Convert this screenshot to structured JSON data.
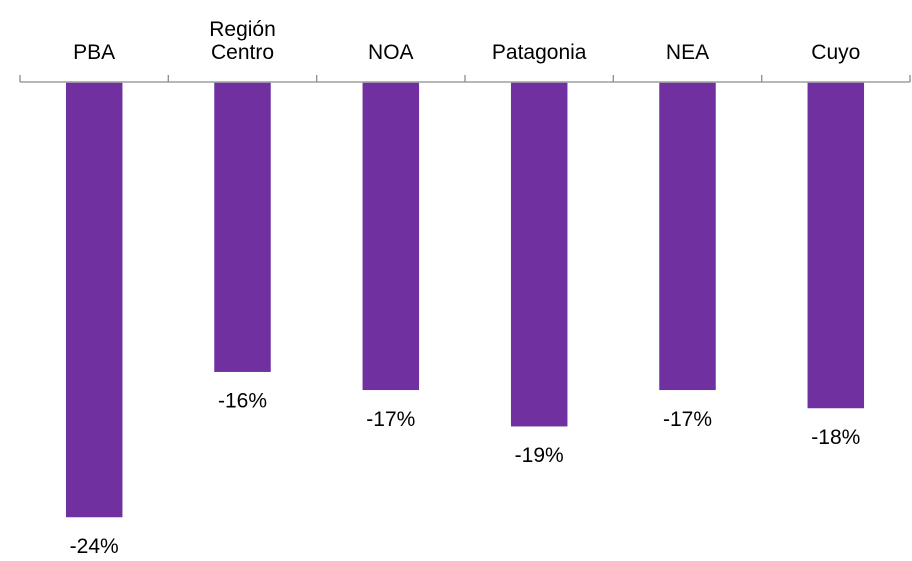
{
  "chart_data": {
    "type": "bar",
    "orientation": "vertical",
    "categories": [
      "PBA",
      "Región Centro",
      "NOA",
      "Patagonia",
      "NEA",
      "Cuyo"
    ],
    "values": [
      -24,
      -16,
      -17,
      -19,
      -17,
      -18
    ],
    "value_labels": [
      "-24%",
      "-16%",
      "-17%",
      "-19%",
      "-17%",
      "-18%"
    ],
    "value_unit": "%",
    "ylim": [
      -24,
      0
    ],
    "category_axis_position": "top",
    "value_axis_shown": false,
    "grid": false,
    "legend": "none",
    "title": "",
    "xlabel": "",
    "ylabel": "",
    "colors": {
      "bar": "#7030A0",
      "bar_edge": "#ffffff",
      "axis": "#8c8c8c",
      "text": "#000000"
    }
  }
}
